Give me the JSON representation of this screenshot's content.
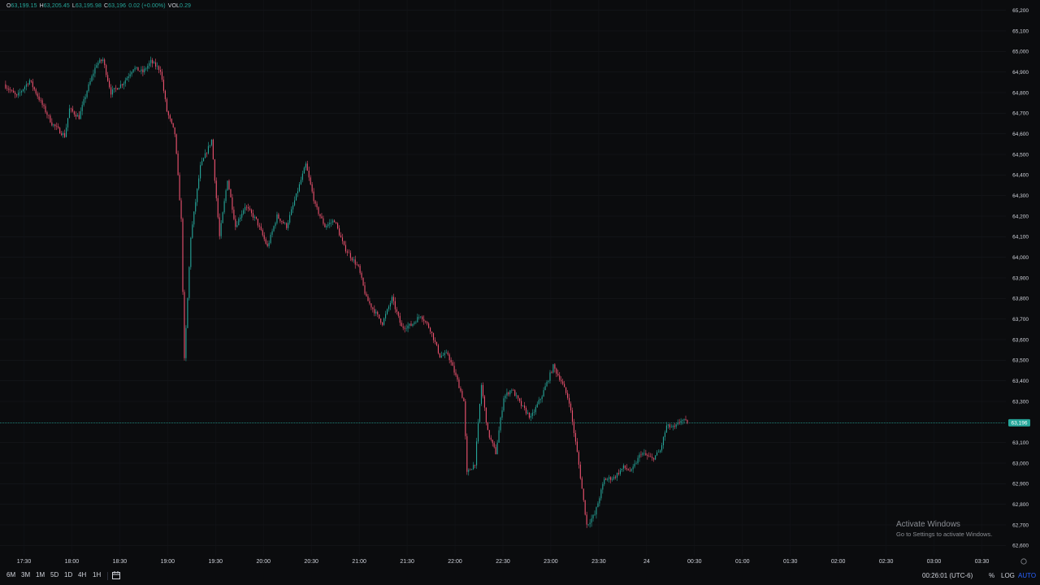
{
  "ohlc": {
    "o_label": "O",
    "o": "63,199.15",
    "h_label": "H",
    "h": "63,205.45",
    "l_label": "L",
    "l": "63,195.98",
    "c_label": "C",
    "c": "63,196",
    "change": "0.02 (+0.00%)",
    "vol_label": "VOL",
    "vol": "0.29"
  },
  "chart_data": {
    "type": "candlestick",
    "title": "",
    "xlabel": "",
    "ylabel": "",
    "ylim": [
      62550,
      65250
    ],
    "y_ticks": [
      {
        "value": 65200,
        "label": "65,200"
      },
      {
        "value": 65100,
        "label": "65,100"
      },
      {
        "value": 65000,
        "label": "65,000"
      },
      {
        "value": 64900,
        "label": "64,900"
      },
      {
        "value": 64800,
        "label": "64,800"
      },
      {
        "value": 64700,
        "label": "64,700"
      },
      {
        "value": 64600,
        "label": "64,600"
      },
      {
        "value": 64500,
        "label": "64,500"
      },
      {
        "value": 64400,
        "label": "64,400"
      },
      {
        "value": 64300,
        "label": "64,300"
      },
      {
        "value": 64200,
        "label": "64,200"
      },
      {
        "value": 64100,
        "label": "64,100"
      },
      {
        "value": 64000,
        "label": "64,000"
      },
      {
        "value": 63900,
        "label": "63,900"
      },
      {
        "value": 63800,
        "label": "63,800"
      },
      {
        "value": 63700,
        "label": "63,700"
      },
      {
        "value": 63600,
        "label": "63,600"
      },
      {
        "value": 63500,
        "label": "63,500"
      },
      {
        "value": 63400,
        "label": "63,400"
      },
      {
        "value": 63300,
        "label": "63,300"
      },
      {
        "value": 63100,
        "label": "63,100"
      },
      {
        "value": 63000,
        "label": "63,000"
      },
      {
        "value": 62900,
        "label": "62,900"
      },
      {
        "value": 62800,
        "label": "62,800"
      },
      {
        "value": 62700,
        "label": "62,700"
      },
      {
        "value": 62600,
        "label": "62,600"
      }
    ],
    "x_ticks": [
      {
        "time": "17:30",
        "label": "17:30"
      },
      {
        "time": "18:00",
        "label": "18:00"
      },
      {
        "time": "18:30",
        "label": "18:30"
      },
      {
        "time": "19:00",
        "label": "19:00"
      },
      {
        "time": "19:30",
        "label": "19:30"
      },
      {
        "time": "20:00",
        "label": "20:00"
      },
      {
        "time": "20:30",
        "label": "20:30"
      },
      {
        "time": "21:00",
        "label": "21:00"
      },
      {
        "time": "21:30",
        "label": "21:30"
      },
      {
        "time": "22:00",
        "label": "22:00"
      },
      {
        "time": "22:30",
        "label": "22:30"
      },
      {
        "time": "23:00",
        "label": "23:00"
      },
      {
        "time": "23:30",
        "label": "23:30"
      },
      {
        "time": "24:00",
        "label": "24"
      },
      {
        "time": "24:30",
        "label": "00:30"
      },
      {
        "time": "25:00",
        "label": "01:00"
      },
      {
        "time": "25:30",
        "label": "01:30"
      },
      {
        "time": "26:00",
        "label": "02:00"
      },
      {
        "time": "26:30",
        "label": "02:30"
      },
      {
        "time": "27:00",
        "label": "03:00"
      },
      {
        "time": "27:30",
        "label": "03:30"
      }
    ],
    "x_range": [
      "17:15",
      "27:45"
    ],
    "last_price": 63196,
    "last_price_label": "63,196",
    "up_color": "#26a69a",
    "down_color": "#ef5370",
    "price_line_color": "#26a69a",
    "price_path": [
      [
        "17:18",
        64840
      ],
      [
        "17:26",
        64780
      ],
      [
        "17:34",
        64860
      ],
      [
        "17:40",
        64770
      ],
      [
        "17:48",
        64650
      ],
      [
        "17:56",
        64590
      ],
      [
        "17:59",
        64720
      ],
      [
        "18:05",
        64680
      ],
      [
        "18:10",
        64810
      ],
      [
        "18:16",
        64940
      ],
      [
        "18:20",
        64960
      ],
      [
        "18:25",
        64800
      ],
      [
        "18:33",
        64850
      ],
      [
        "18:39",
        64920
      ],
      [
        "18:45",
        64900
      ],
      [
        "18:50",
        64950
      ],
      [
        "18:56",
        64910
      ],
      [
        "19:00",
        64710
      ],
      [
        "19:05",
        64600
      ],
      [
        "19:09",
        64180
      ],
      [
        "19:11",
        63500
      ],
      [
        "19:15",
        64100
      ],
      [
        "19:21",
        64440
      ],
      [
        "19:28",
        64570
      ],
      [
        "19:33",
        64100
      ],
      [
        "19:38",
        64380
      ],
      [
        "19:43",
        64150
      ],
      [
        "19:49",
        64250
      ],
      [
        "19:56",
        64180
      ],
      [
        "20:03",
        64050
      ],
      [
        "20:09",
        64200
      ],
      [
        "20:15",
        64150
      ],
      [
        "20:21",
        64300
      ],
      [
        "20:27",
        64450
      ],
      [
        "20:33",
        64250
      ],
      [
        "20:39",
        64150
      ],
      [
        "20:45",
        64180
      ],
      [
        "20:51",
        64050
      ],
      [
        "21:00",
        63950
      ],
      [
        "21:05",
        63800
      ],
      [
        "21:09",
        63750
      ],
      [
        "21:15",
        63680
      ],
      [
        "21:21",
        63800
      ],
      [
        "21:27",
        63660
      ],
      [
        "21:33",
        63670
      ],
      [
        "21:39",
        63720
      ],
      [
        "21:45",
        63650
      ],
      [
        "21:51",
        63520
      ],
      [
        "21:56",
        63530
      ],
      [
        "22:02",
        63400
      ],
      [
        "22:06",
        63300
      ],
      [
        "22:08",
        62950
      ],
      [
        "22:13",
        63000
      ],
      [
        "22:17",
        63380
      ],
      [
        "22:21",
        63150
      ],
      [
        "22:26",
        63050
      ],
      [
        "22:31",
        63320
      ],
      [
        "22:36",
        63360
      ],
      [
        "22:42",
        63280
      ],
      [
        "22:48",
        63220
      ],
      [
        "22:55",
        63330
      ],
      [
        "23:02",
        63470
      ],
      [
        "23:07",
        63400
      ],
      [
        "23:12",
        63300
      ],
      [
        "23:17",
        63050
      ],
      [
        "23:23",
        62700
      ],
      [
        "23:28",
        62750
      ],
      [
        "23:34",
        62920
      ],
      [
        "23:40",
        62930
      ],
      [
        "23:46",
        62980
      ],
      [
        "23:51",
        62960
      ],
      [
        "23:57",
        63050
      ],
      [
        "24:04",
        63020
      ],
      [
        "24:09",
        63060
      ],
      [
        "24:13",
        63180
      ],
      [
        "24:18",
        63170
      ],
      [
        "24:22",
        63210
      ],
      [
        "24:26",
        63196
      ]
    ]
  },
  "watermark": {
    "title": "Activate Windows",
    "subtitle": "Go to Settings to activate Windows."
  },
  "bottom_bar": {
    "timeframes": [
      "6M",
      "3M",
      "1M",
      "5D",
      "1D",
      "4H",
      "1H"
    ],
    "clock": "00:26:01 (UTC-6)",
    "percent": "%",
    "log": "LOG",
    "auto": "AUTO"
  }
}
